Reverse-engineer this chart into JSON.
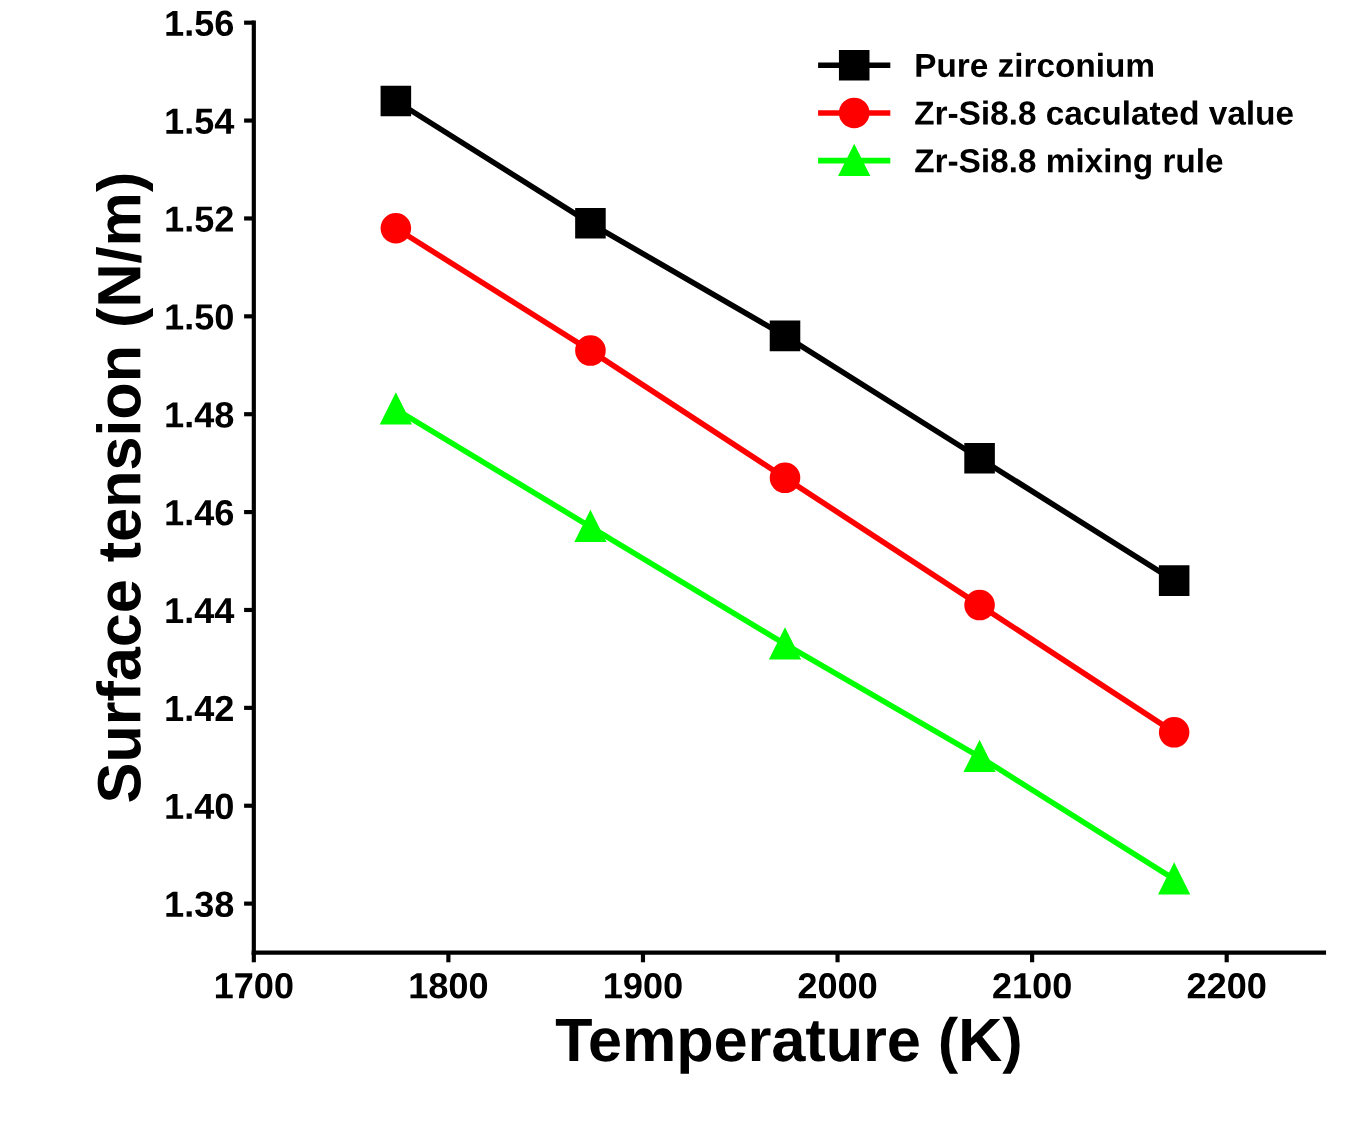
{
  "chart_data": {
    "type": "line",
    "xlabel": "Temperature (K)",
    "ylabel": "Surface tension (N/m)",
    "x": [
      1773,
      1873,
      1973,
      2073,
      2173
    ],
    "series": [
      {
        "name": "Pure zirconium",
        "color": "#000000",
        "marker": "square",
        "values": [
          1.544,
          1.519,
          1.496,
          1.471,
          1.446
        ]
      },
      {
        "name": "Zr-Si8.8 caculated value",
        "color": "#ff0000",
        "marker": "circle",
        "values": [
          1.518,
          1.493,
          1.467,
          1.441,
          1.415
        ]
      },
      {
        "name": "Zr-Si8.8 mixing rule",
        "color": "#00ff00",
        "marker": "triangle",
        "values": [
          1.481,
          1.457,
          1.433,
          1.41,
          1.385
        ]
      }
    ],
    "xlim": [
      1700,
      2250
    ],
    "xticks": [
      1700,
      1800,
      1900,
      2000,
      2100,
      2200
    ],
    "ylim": [
      1.37,
      1.56
    ],
    "yticks": [
      {
        "value": 1.38,
        "label": "1.38"
      },
      {
        "value": 1.4,
        "label": "1.40"
      },
      {
        "value": 1.42,
        "label": "1.42"
      },
      {
        "value": 1.44,
        "label": "1.44"
      },
      {
        "value": 1.46,
        "label": "1.46"
      },
      {
        "value": 1.48,
        "label": "1.48"
      },
      {
        "value": 1.5,
        "label": "1.50"
      },
      {
        "value": 1.52,
        "label": "1.52"
      },
      {
        "value": 1.54,
        "label": "1.54"
      },
      {
        "value": 1.56,
        "label": "1.56"
      }
    ],
    "grid": false,
    "legend": "top right",
    "line_style": "solid"
  }
}
